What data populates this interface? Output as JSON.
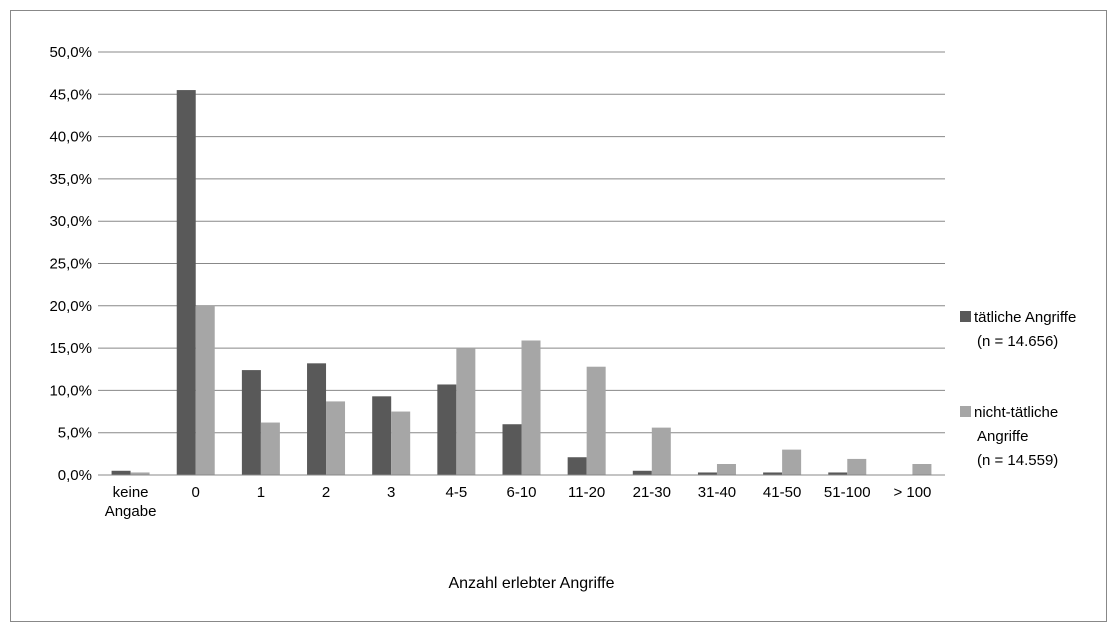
{
  "chart_data": {
    "type": "bar",
    "title": "",
    "xlabel": "Anzahl erlebter Angriffe",
    "ylabel": "",
    "ylim": [
      0,
      50
    ],
    "y_ticks": [
      "0,0%",
      "5,0%",
      "10,0%",
      "15,0%",
      "20,0%",
      "25,0%",
      "30,0%",
      "35,0%",
      "40,0%",
      "45,0%",
      "50,0%"
    ],
    "y_tick_values": [
      0,
      5,
      10,
      15,
      20,
      25,
      30,
      35,
      40,
      45,
      50
    ],
    "grid": true,
    "legend_position": "right",
    "categories": [
      [
        "keine",
        "Angabe"
      ],
      [
        "0"
      ],
      [
        "1"
      ],
      [
        "2"
      ],
      [
        "3"
      ],
      [
        "4-5"
      ],
      [
        "6-10"
      ],
      [
        "11-20"
      ],
      [
        "21-30"
      ],
      [
        "31-40"
      ],
      [
        "41-50"
      ],
      [
        "51-100"
      ],
      [
        "> 100"
      ]
    ],
    "series": [
      {
        "name": [
          "tätliche Angriffe",
          "(n = 14.656)"
        ],
        "color": "#595959",
        "values": [
          0.5,
          45.5,
          12.4,
          13.2,
          9.3,
          10.7,
          6.0,
          2.1,
          0.5,
          0.3,
          0.3,
          0.3,
          0.0
        ]
      },
      {
        "name": [
          "nicht-tätliche",
          "Angriffe",
          "(n = 14.559)"
        ],
        "color": "#a6a6a6",
        "values": [
          0.3,
          20.0,
          6.2,
          8.7,
          7.5,
          15.0,
          15.9,
          12.8,
          5.6,
          1.3,
          3.0,
          1.9,
          1.3
        ]
      }
    ]
  }
}
